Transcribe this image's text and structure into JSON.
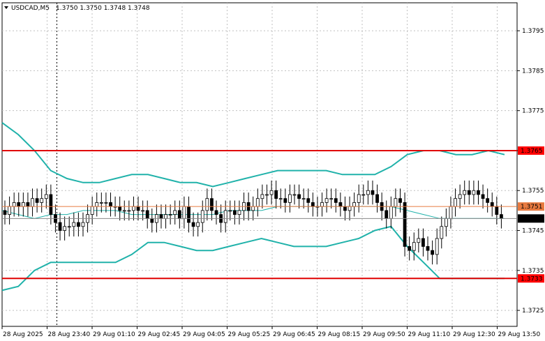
{
  "header": {
    "symbol": "USDCAD,M5",
    "ohlc": "1.3750 1.3750 1.3748 1.3748"
  },
  "colors": {
    "background": "#ffffff",
    "grid": "#c0c0c0",
    "candle": "#000000",
    "bollinger": "#20b2aa",
    "support_resistance": "#e00000",
    "current_line": "#e87a40",
    "current_marker": "#ff0000"
  },
  "chart_data": {
    "type": "candlestick",
    "instrument": "USDCAD",
    "timeframe": "M5",
    "ylim": [
      1.3721,
      1.3802
    ],
    "y_ticks": [
      "1.3795",
      "1.3785",
      "1.3775",
      "1.3765",
      "1.3755",
      "1.3745",
      "1.3735",
      "1.3725"
    ],
    "x_ticks": [
      "28 Aug 2025",
      "28 Aug 23:40",
      "29 Aug 01:10",
      "29 Aug 02:45",
      "29 Aug 04:05",
      "29 Aug 05:25",
      "29 Aug 06:45",
      "29 Aug 08:15",
      "29 Aug 09:50",
      "29 Aug 11:10",
      "29 Aug 12:30",
      "29 Aug 13:50"
    ],
    "close_series": [
      1.3749,
      1.3751,
      1.3752,
      1.3751,
      1.3752,
      1.3751,
      1.3753,
      1.3752,
      1.3753,
      1.3754,
      1.3749,
      1.3747,
      1.3745,
      1.3746,
      1.3746,
      1.3747,
      1.3746,
      1.3747,
      1.3749,
      1.3751,
      1.3752,
      1.3752,
      1.3752,
      1.3751,
      1.3751,
      1.375,
      1.375,
      1.375,
      1.3751,
      1.375,
      1.375,
      1.3748,
      1.3747,
      1.3749,
      1.3748,
      1.3749,
      1.3749,
      1.375,
      1.3748,
      1.3751,
      1.3747,
      1.3746,
      1.3747,
      1.375,
      1.3753,
      1.375,
      1.3749,
      1.3747,
      1.375,
      1.375,
      1.3749,
      1.375,
      1.3752,
      1.375,
      1.3751,
      1.3753,
      1.3754,
      1.3754,
      1.3755,
      1.3753,
      1.3753,
      1.3752,
      1.3754,
      1.3754,
      1.3753,
      1.3753,
      1.3752,
      1.3751,
      1.3751,
      1.3752,
      1.3753,
      1.3753,
      1.3752,
      1.3751,
      1.375,
      1.3751,
      1.3752,
      1.3754,
      1.3754,
      1.3755,
      1.3754,
      1.3752,
      1.375,
      1.3748,
      1.3751,
      1.3753,
      1.3752,
      1.3741,
      1.374,
      1.3742,
      1.3743,
      1.3741,
      1.374,
      1.3739,
      1.3743,
      1.3746,
      1.3748,
      1.3751,
      1.3753,
      1.3754,
      1.3755,
      1.3754,
      1.3755,
      1.3754,
      1.3753,
      1.3752,
      1.3751,
      1.3749,
      1.3748
    ],
    "bollinger_upper": [
      1.3772,
      1.3769,
      1.3765,
      1.376,
      1.3758,
      1.3757,
      1.3757,
      1.3758,
      1.3759,
      1.3759,
      1.3758,
      1.3757,
      1.3757,
      1.3756,
      1.3757,
      1.3758,
      1.3759,
      1.376,
      1.376,
      1.376,
      1.376,
      1.3759,
      1.3759,
      1.3759,
      1.3761,
      1.3764,
      1.3765,
      1.3765,
      1.3764,
      1.3764,
      1.3765,
      1.3764
    ],
    "bollinger_middle": [
      1.375,
      1.3749,
      1.3748,
      1.3749,
      1.3749,
      1.375,
      1.375,
      1.375,
      1.3749,
      1.3749,
      1.3749,
      1.3749,
      1.3749,
      1.3749,
      1.375,
      1.375,
      1.375,
      1.3751,
      1.3751,
      1.3751,
      1.3751,
      1.3751,
      1.3751,
      1.3751,
      1.3751,
      1.375,
      1.3749,
      1.3748,
      1.3748,
      1.3748,
      1.3748,
      1.3748
    ],
    "bollinger_lower": [
      1.373,
      1.3731,
      1.3735,
      1.3737,
      1.3737,
      1.3737,
      1.3737,
      1.3737,
      1.3739,
      1.3742,
      1.3742,
      1.3741,
      1.374,
      1.374,
      1.3741,
      1.3742,
      1.3743,
      1.3742,
      1.3741,
      1.3741,
      1.3741,
      1.3742,
      1.3743,
      1.3745,
      1.3746,
      1.3741,
      1.3737,
      1.3733,
      1.3733,
      1.3733,
      1.3733,
      1.3733
    ],
    "horizontal_levels": [
      {
        "label": "1.3765",
        "value": 1.3765
      },
      {
        "label": "1.3733",
        "value": 1.3733
      }
    ],
    "current_price_lines": [
      {
        "label": "1.3751",
        "value": 1.3751
      },
      {
        "label": "1.3748",
        "value": 1.3748
      }
    ],
    "grid": true,
    "legend": "none"
  }
}
